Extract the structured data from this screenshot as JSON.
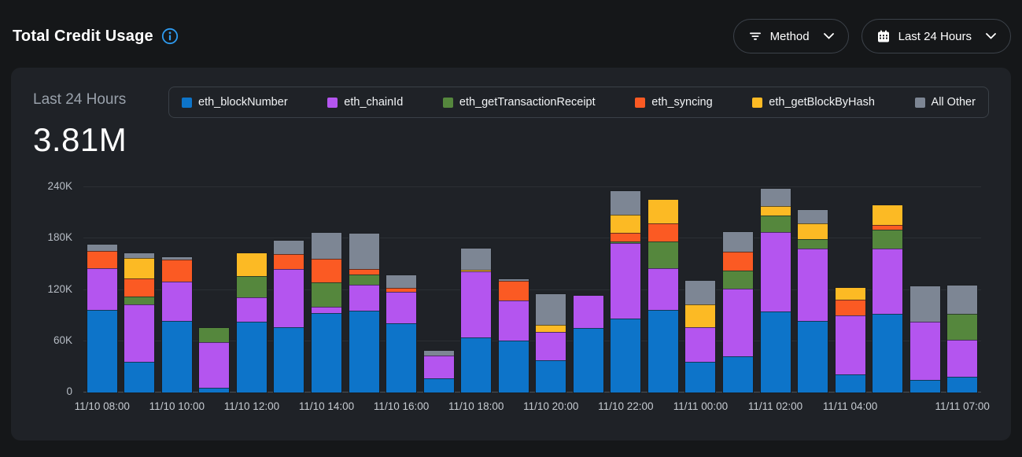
{
  "header": {
    "title": "Total Credit Usage",
    "filters": [
      {
        "id": "method",
        "label": "Method",
        "icon": "filter-icon"
      },
      {
        "id": "time-range",
        "label": "Last 24 Hours",
        "icon": "calendar-icon"
      }
    ]
  },
  "card": {
    "period_label": "Last 24 Hours",
    "total_value": "3.81M"
  },
  "colors": {
    "accent_blue": "#2e9bf0",
    "page_bg": "#151719",
    "card_bg": "#1f2227",
    "grid": "#2b2f34"
  },
  "legend": [
    {
      "label": "eth_blockNumber",
      "color": "#0d74c9"
    },
    {
      "label": "eth_chainId",
      "color": "#b455ef"
    },
    {
      "label": "eth_getTransactionReceipt",
      "color": "#55873d"
    },
    {
      "label": "eth_syncing",
      "color": "#fb5a23"
    },
    {
      "label": "eth_getBlockByHash",
      "color": "#fcba24"
    },
    {
      "label": "All Other",
      "color": "#7d8694"
    }
  ],
  "chart_data": {
    "type": "bar",
    "stacked": true,
    "title": "Total Credit Usage — Last 24 Hours",
    "total_label": "3.81M",
    "grid": "horizontal",
    "legend_position": "top",
    "ylim": [
      0,
      240000
    ],
    "yticks": [
      {
        "label": "0",
        "value": 0
      },
      {
        "label": "60K",
        "value": 60000
      },
      {
        "label": "120K",
        "value": 120000
      },
      {
        "label": "180K",
        "value": 180000
      },
      {
        "label": "240K",
        "value": 240000
      }
    ],
    "categories": [
      "11/10 08:00",
      "11/10 09:00",
      "11/10 10:00",
      "11/10 11:00",
      "11/10 12:00",
      "11/10 13:00",
      "11/10 14:00",
      "11/10 15:00",
      "11/10 16:00",
      "11/10 17:00",
      "11/10 18:00",
      "11/10 19:00",
      "11/10 20:00",
      "11/10 21:00",
      "11/10 22:00",
      "11/10 23:00",
      "11/11 00:00",
      "11/11 01:00",
      "11/11 02:00",
      "11/11 03:00",
      "11/11 04:00",
      "11/11 05:00",
      "11/11 06:00",
      "11/11 07:00"
    ],
    "xticks": [
      {
        "index": 0,
        "label": "11/10 08:00"
      },
      {
        "index": 2,
        "label": "11/10 10:00"
      },
      {
        "index": 4,
        "label": "11/10 12:00"
      },
      {
        "index": 6,
        "label": "11/10 14:00"
      },
      {
        "index": 8,
        "label": "11/10 16:00"
      },
      {
        "index": 10,
        "label": "11/10 18:00"
      },
      {
        "index": 12,
        "label": "11/10 20:00"
      },
      {
        "index": 14,
        "label": "11/10 22:00"
      },
      {
        "index": 16,
        "label": "11/11 00:00"
      },
      {
        "index": 18,
        "label": "11/11 02:00"
      },
      {
        "index": 20,
        "label": "11/11 04:00"
      },
      {
        "index": 23,
        "label": "11/11 07:00"
      }
    ],
    "series": [
      {
        "name": "eth_blockNumber",
        "color": "#0d74c9",
        "values": [
          97000,
          36000,
          83500,
          5500,
          82500,
          76000,
          93000,
          96000,
          81000,
          17000,
          64500,
          61000,
          37500,
          75000,
          86000,
          96500,
          36000,
          42000,
          95000,
          84000,
          21000,
          92000,
          15000,
          18500
        ]
      },
      {
        "name": "eth_chainId",
        "color": "#b455ef",
        "values": [
          48000,
          67000,
          46500,
          53500,
          28500,
          68000,
          7000,
          30000,
          36500,
          26000,
          77500,
          47000,
          33000,
          38500,
          89000,
          49000,
          40000,
          79500,
          92500,
          84000,
          69500,
          76500,
          68000,
          43000
        ]
      },
      {
        "name": "eth_getTransactionReceipt",
        "color": "#55873d",
        "values": [
          0,
          9500,
          0,
          16000,
          25000,
          0,
          29000,
          12000,
          0,
          0,
          0,
          0,
          0,
          0,
          1500,
          31500,
          0,
          21500,
          19000,
          11000,
          0,
          21500,
          0,
          30500
        ]
      },
      {
        "name": "eth_syncing",
        "color": "#fb5a23",
        "values": [
          21000,
          20500,
          25000,
          0,
          0,
          17500,
          27000,
          6000,
          5000,
          0,
          0,
          23000,
          0,
          0,
          10000,
          21000,
          0,
          22000,
          0,
          0,
          18000,
          5500,
          0,
          0
        ]
      },
      {
        "name": "eth_getBlockByHash",
        "color": "#fcba24",
        "values": [
          0,
          24000,
          0,
          0,
          27000,
          0,
          0,
          0,
          0,
          0,
          1500,
          0,
          8500,
          0,
          21500,
          27000,
          27000,
          0,
          11500,
          18500,
          14000,
          23500,
          0,
          0
        ]
      },
      {
        "name": "All Other",
        "color": "#7d8694",
        "values": [
          7000,
          6000,
          3000,
          0,
          0,
          16000,
          31000,
          42000,
          14500,
          5500,
          24500,
          1500,
          36000,
          0,
          27000,
          0,
          28000,
          23000,
          20000,
          16000,
          0,
          0,
          41000,
          33000
        ]
      }
    ]
  }
}
